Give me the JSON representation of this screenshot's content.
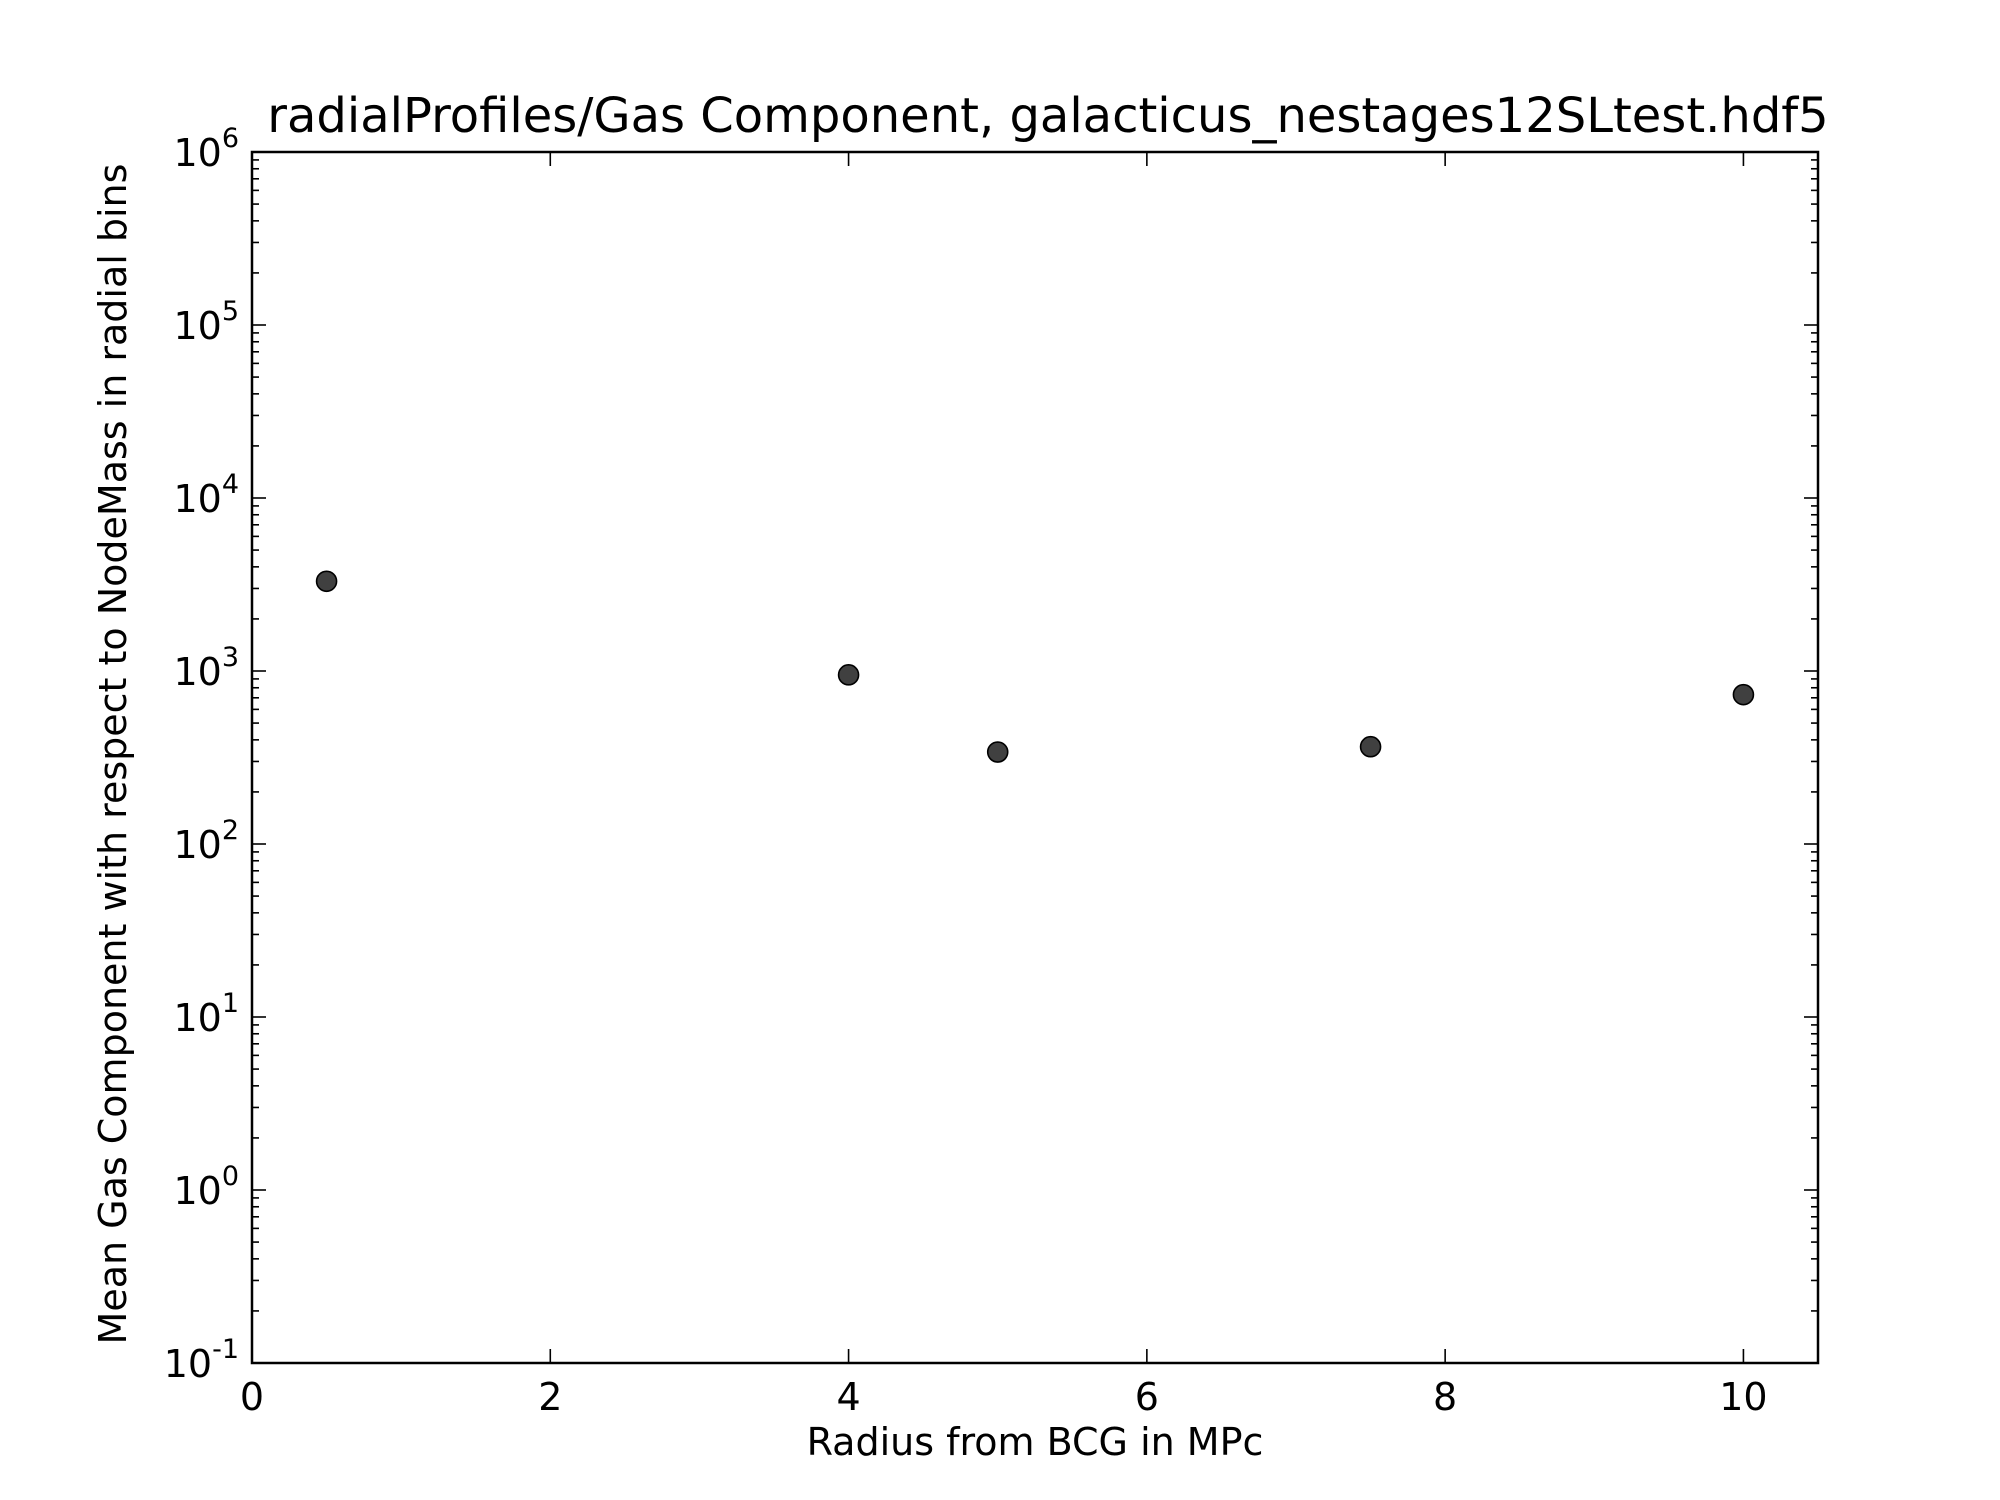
{
  "chart_data": {
    "type": "scatter",
    "title": "radialProfiles/Gas Component, galacticus_nestages12SLtest.hdf5",
    "xlabel": "Radius from BCG in MPc",
    "ylabel": "Mean Gas Component with respect to NodeMass in radial bins",
    "xlim": [
      0,
      10.5
    ],
    "ylim": [
      0.1,
      1000000
    ],
    "yscale": "log",
    "grid": false,
    "legend": "none",
    "x_ticks": [
      0,
      2,
      4,
      6,
      8,
      10
    ],
    "x_tick_labels": [
      "0",
      "2",
      "4",
      "6",
      "8",
      "10"
    ],
    "y_ticks": [
      {
        "value": 0.1,
        "base": "10",
        "exp": "-1"
      },
      {
        "value": 1,
        "base": "10",
        "exp": "0"
      },
      {
        "value": 10,
        "base": "10",
        "exp": "1"
      },
      {
        "value": 100,
        "base": "10",
        "exp": "2"
      },
      {
        "value": 1000,
        "base": "10",
        "exp": "3"
      },
      {
        "value": 10000,
        "base": "10",
        "exp": "4"
      },
      {
        "value": 100000,
        "base": "10",
        "exp": "5"
      },
      {
        "value": 1000000,
        "base": "10",
        "exp": "6"
      }
    ],
    "marker_color": "#404040",
    "marker_edge_color": "#000000",
    "points": [
      {
        "x": 0.5,
        "y": 3300
      },
      {
        "x": 4.0,
        "y": 950
      },
      {
        "x": 5.0,
        "y": 340
      },
      {
        "x": 7.5,
        "y": 365
      },
      {
        "x": 10.0,
        "y": 730
      }
    ]
  }
}
